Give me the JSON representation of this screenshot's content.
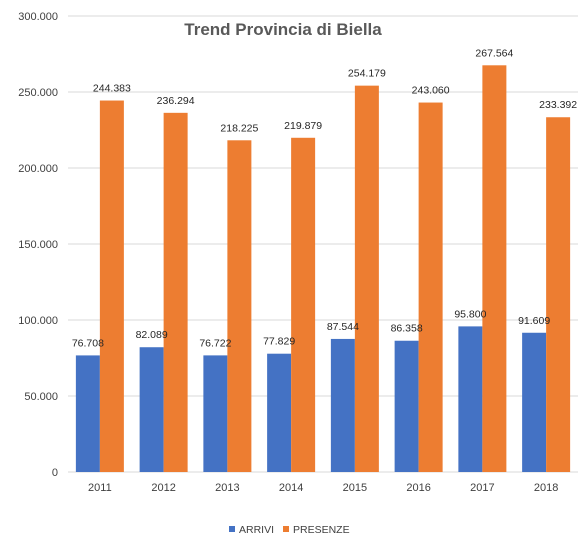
{
  "chart_data": {
    "type": "bar",
    "title": "Trend Provincia di Biella",
    "categories": [
      "2011",
      "2012",
      "2013",
      "2014",
      "2015",
      "2016",
      "2017",
      "2018"
    ],
    "series": [
      {
        "name": "ARRIVI",
        "color": "#4472C4",
        "values": [
          76708,
          82089,
          76722,
          77829,
          87544,
          86358,
          95800,
          91609
        ],
        "labels": [
          "76.708",
          "82.089",
          "76.722",
          "77.829",
          "87.544",
          "86.358",
          "95.800",
          "91.609"
        ]
      },
      {
        "name": "PRESENZE",
        "color": "#ED7D31",
        "values": [
          244383,
          236294,
          218225,
          219879,
          254179,
          243060,
          267564,
          233392
        ],
        "labels": [
          "244.383",
          "236.294",
          "218.225",
          "219.879",
          "254.179",
          "243.060",
          "267.564",
          "233.392"
        ]
      }
    ],
    "ylim": [
      0,
      300000
    ],
    "yticks": [
      0,
      50000,
      100000,
      150000,
      200000,
      250000,
      300000
    ],
    "ytick_labels": [
      "0",
      "50.000",
      "100.000",
      "150.000",
      "200.000",
      "250.000",
      "300.000"
    ],
    "grid": true,
    "legend": "bottom",
    "xlabel": "",
    "ylabel": ""
  }
}
